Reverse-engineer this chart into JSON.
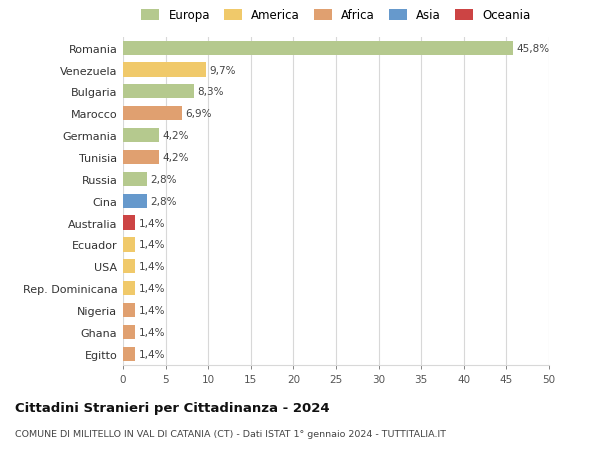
{
  "countries": [
    "Romania",
    "Venezuela",
    "Bulgaria",
    "Marocco",
    "Germania",
    "Tunisia",
    "Russia",
    "Cina",
    "Australia",
    "Ecuador",
    "USA",
    "Rep. Dominicana",
    "Nigeria",
    "Ghana",
    "Egitto"
  ],
  "values": [
    45.8,
    9.7,
    8.3,
    6.9,
    4.2,
    4.2,
    2.8,
    2.8,
    1.4,
    1.4,
    1.4,
    1.4,
    1.4,
    1.4,
    1.4
  ],
  "labels": [
    "45,8%",
    "9,7%",
    "8,3%",
    "6,9%",
    "4,2%",
    "4,2%",
    "2,8%",
    "2,8%",
    "1,4%",
    "1,4%",
    "1,4%",
    "1,4%",
    "1,4%",
    "1,4%",
    "1,4%"
  ],
  "continents": [
    "Europa",
    "America",
    "Europa",
    "Africa",
    "Europa",
    "Africa",
    "Europa",
    "Asia",
    "Oceania",
    "America",
    "America",
    "America",
    "Africa",
    "Africa",
    "Africa"
  ],
  "colors": {
    "Europa": "#b5c98e",
    "America": "#f0c96a",
    "Africa": "#e0a070",
    "Asia": "#6699cc",
    "Oceania": "#cc4444"
  },
  "legend_order": [
    "Europa",
    "America",
    "Africa",
    "Asia",
    "Oceania"
  ],
  "title": "Cittadini Stranieri per Cittadinanza - 2024",
  "subtitle": "COMUNE DI MILITELLO IN VAL DI CATANIA (CT) - Dati ISTAT 1° gennaio 2024 - TUTTITALIA.IT",
  "xlim": [
    0,
    50
  ],
  "xticks": [
    0,
    5,
    10,
    15,
    20,
    25,
    30,
    35,
    40,
    45,
    50
  ],
  "background_color": "#ffffff",
  "grid_color": "#d8d8d8"
}
